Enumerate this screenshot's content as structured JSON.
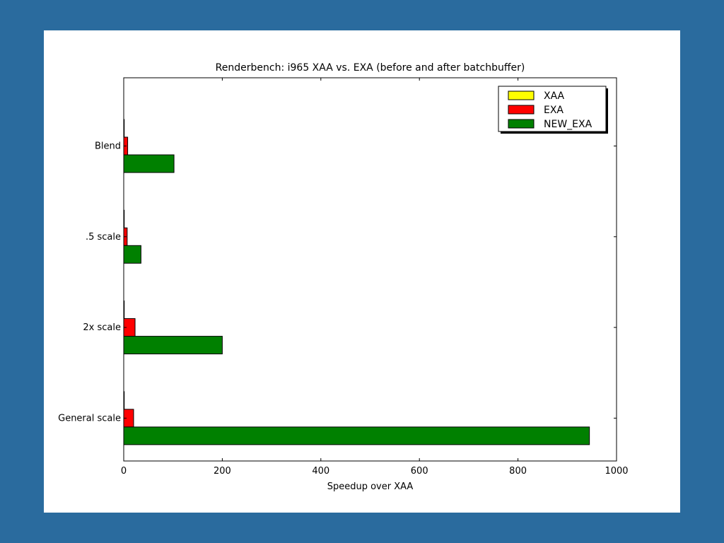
{
  "colors": {
    "background": "#2a6b9e",
    "panel": "#ffffff"
  },
  "chart_data": {
    "type": "bar",
    "orientation": "horizontal",
    "title": "Renderbench: i965 XAA vs. EXA (before and after batchbuffer)",
    "xlabel": "Speedup over XAA",
    "ylabel": "",
    "xlim": [
      0,
      1000
    ],
    "xticks": [
      0,
      200,
      400,
      600,
      800,
      1000
    ],
    "categories": [
      "Blend",
      ".5 scale",
      "2x scale",
      "General scale"
    ],
    "series": [
      {
        "name": "XAA",
        "color": "#ffff00",
        "values": [
          1,
          1,
          1,
          1
        ]
      },
      {
        "name": "EXA",
        "color": "#ff0000",
        "values": [
          8,
          7,
          23,
          20
        ]
      },
      {
        "name": "NEW_EXA",
        "color": "#008000",
        "values": [
          102,
          35,
          200,
          945
        ]
      }
    ],
    "grid": false,
    "legend_position": "top-right"
  }
}
